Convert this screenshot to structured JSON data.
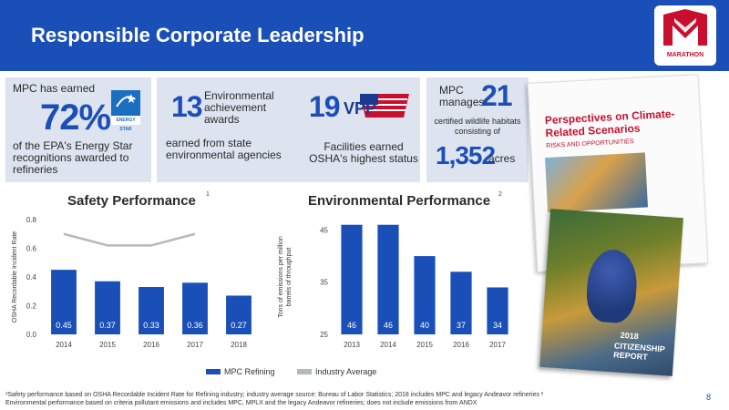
{
  "header": {
    "title": "Responsible Corporate Leadership",
    "logo_text": "MARATHON"
  },
  "colors": {
    "brand_blue": "#1b4fb8",
    "bar_blue": "#1b4fb8",
    "industry_gray": "#b4b9be",
    "box_bg": "#dde3ef"
  },
  "stat1": {
    "prefix": "MPC has earned",
    "value": "72%",
    "suffix": "of the EPA's Energy Star recognitions awarded to refineries",
    "badge": "ENERGY STAR"
  },
  "stat2": {
    "value": "13",
    "label": "Environmental achievement awards",
    "suffix": "earned from state environmental agencies"
  },
  "stat3": {
    "value": "19",
    "badge": "VPP",
    "suffix": "Facilities earned OSHA's highest status"
  },
  "stat4": {
    "prefix": "MPC manages",
    "value": "21",
    "middle": "certified wildlife habitats consisting of",
    "value2": "1,352",
    "unit": "acres"
  },
  "covers": {
    "climate_title": "Perspectives on Climate-Related Scenarios",
    "climate_subtitle": "RISKS AND OPPORTUNITIES",
    "citizenship_year": "2018",
    "citizenship_title": "CITIZENSHIP REPORT"
  },
  "chart_data": [
    {
      "type": "bar",
      "title": "Safety Performance",
      "title_sup": "1",
      "ylabel": "OSHA Recordable Incident Rate",
      "categories": [
        "2014",
        "2015",
        "2016",
        "2017",
        "2018"
      ],
      "ylim": [
        0,
        0.8
      ],
      "yticks": [
        "0.0",
        "0.2",
        "0.4",
        "0.6",
        "0.8"
      ],
      "series": [
        {
          "name": "MPC Refining",
          "values": [
            0.45,
            0.37,
            0.33,
            0.36,
            0.27
          ],
          "labels": [
            "0.45",
            "0.37",
            "0.33",
            "0.36",
            "0.27"
          ]
        },
        {
          "name": "Industry Average",
          "type": "line",
          "values": [
            0.7,
            0.62,
            0.62,
            0.7,
            null
          ]
        }
      ]
    },
    {
      "type": "bar",
      "title": "Environmental Performance",
      "title_sup": "2",
      "ylabel": "Tons of emissions per million barrels of throughput",
      "categories": [
        "2013",
        "2014",
        "2015",
        "2016",
        "2017"
      ],
      "ylim": [
        25,
        47
      ],
      "yticks": [
        "25",
        "35",
        "45"
      ],
      "series": [
        {
          "name": "MPC Refining",
          "values": [
            46,
            46,
            40,
            37,
            34
          ],
          "labels": [
            "46",
            "46",
            "40",
            "37",
            "34"
          ]
        }
      ]
    }
  ],
  "legend": {
    "mpc": "MPC Refining",
    "industry": "Industry Average"
  },
  "footnote": {
    "line1": "¹Safety performance based on OSHA Recordable Incident Rate for Refining industry; industry average source: Bureau of Labor Statistics; 2018 includes MPC and legacy Andeavor refineries   ²",
    "line2": "Environmental performance based on criteria pollutant emissions and includes MPC, MPLX and the legacy Andeavor refineries; does not include emissions from ANDX"
  },
  "page_number": "8"
}
